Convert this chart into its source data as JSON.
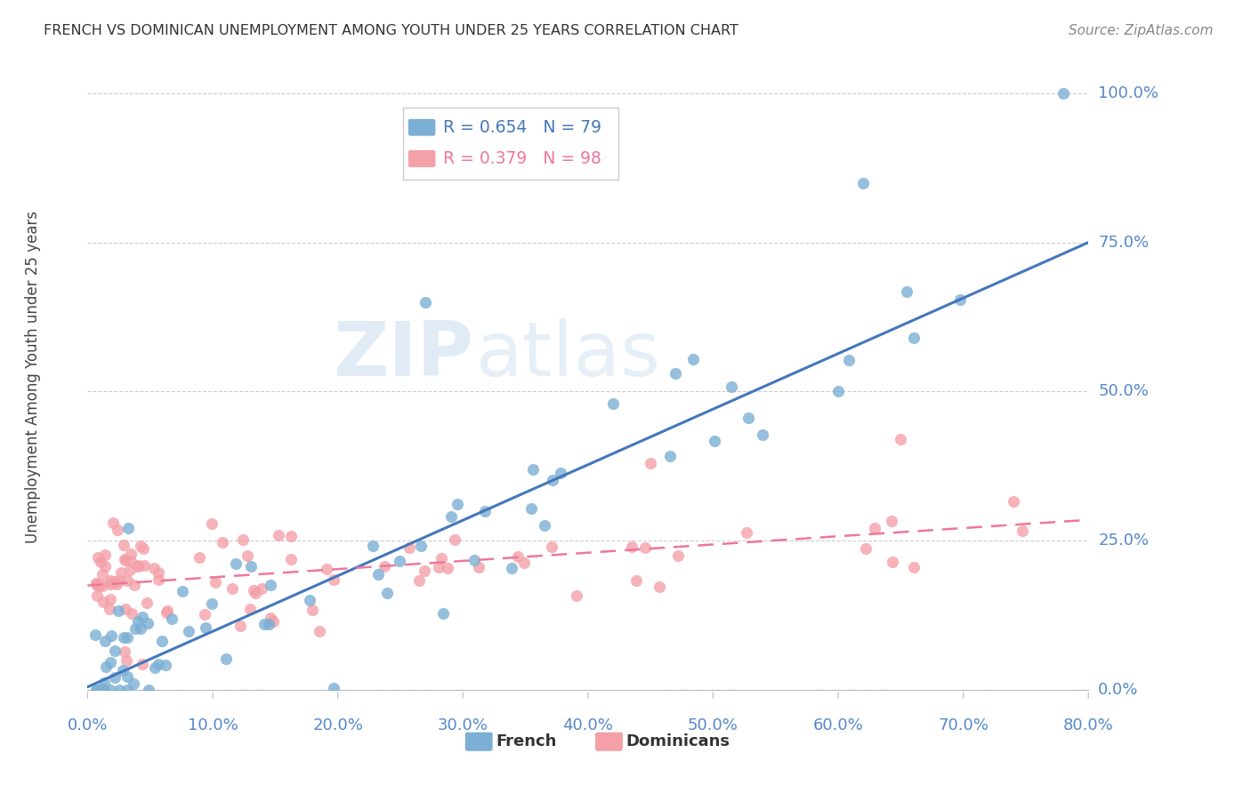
{
  "title": "FRENCH VS DOMINICAN UNEMPLOYMENT AMONG YOUTH UNDER 25 YEARS CORRELATION CHART",
  "source": "Source: ZipAtlas.com",
  "ylabel": "Unemployment Among Youth under 25 years",
  "ytick_labels": [
    "0.0%",
    "25.0%",
    "50.0%",
    "75.0%",
    "100.0%"
  ],
  "ytick_vals": [
    0.0,
    0.25,
    0.5,
    0.75,
    1.0
  ],
  "xtick_vals": [
    0.0,
    0.1,
    0.2,
    0.3,
    0.4,
    0.5,
    0.6,
    0.7,
    0.8
  ],
  "xtick_labels": [
    "0.0%",
    "10.0%",
    "20.0%",
    "30.0%",
    "40.0%",
    "50.0%",
    "60.0%",
    "70.0%",
    "80.0%"
  ],
  "xlim": [
    0.0,
    0.8
  ],
  "ylim": [
    0.0,
    1.05
  ],
  "legend_french_R": "0.654",
  "legend_french_N": "79",
  "legend_dom_R": "0.379",
  "legend_dom_N": "98",
  "legend_label_french": "French",
  "legend_label_dom": "Dominicans",
  "color_french": "#7BAFD4",
  "color_dom": "#F4A0A8",
  "color_french_line": "#4477BB",
  "color_dom_line": "#EE7799",
  "watermark_zip": "ZIP",
  "watermark_atlas": "atlas",
  "french_line_x0": 0.0,
  "french_line_y0": 0.005,
  "french_line_x1": 0.8,
  "french_line_y1": 0.75,
  "dom_line_x0": 0.0,
  "dom_line_y0": 0.175,
  "dom_line_x1": 0.8,
  "dom_line_y1": 0.285
}
